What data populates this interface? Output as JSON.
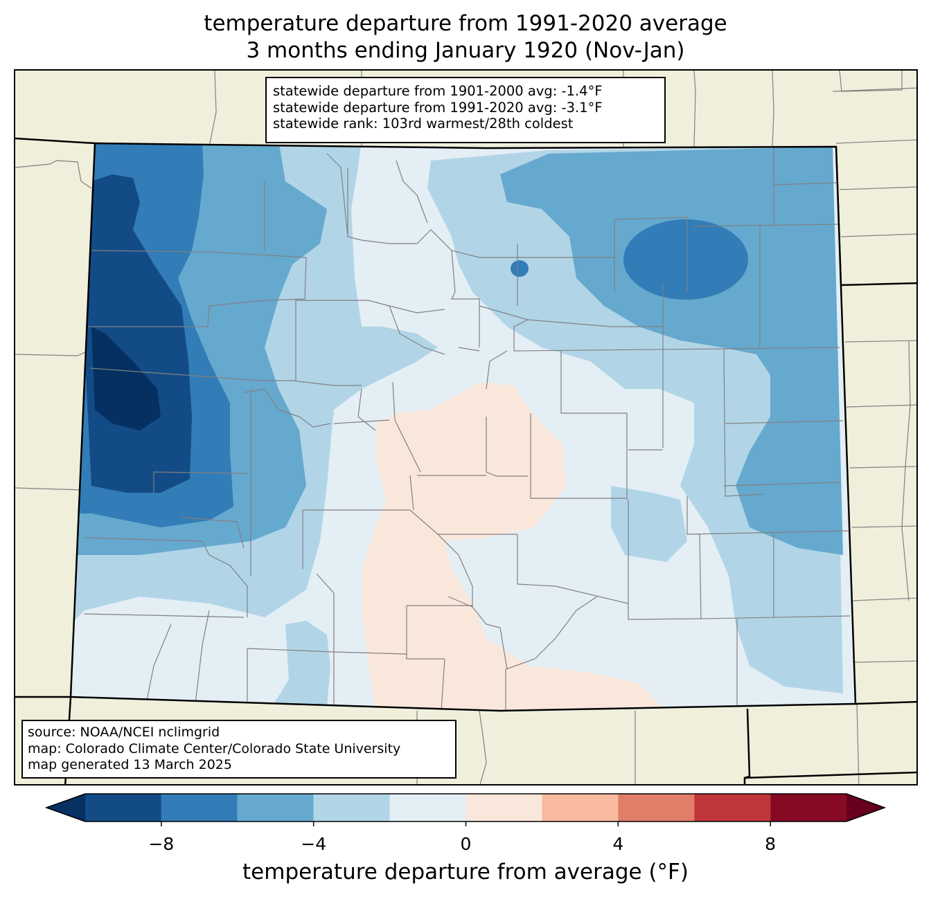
{
  "title": {
    "line1": "temperature departure from 1991-2020 average",
    "line2": "3 months ending January 1920 (Nov-Jan)"
  },
  "stats_box": {
    "line1": "statewide departure from 1901-2000 avg: -1.4°F",
    "line2": "statewide departure from 1991-2020 avg: -3.1°F",
    "line3": "statewide rank: 103rd warmest/28th coldest"
  },
  "source_box": {
    "line1": "source: NOAA/NCEI nclimgrid",
    "line2": "map: Colorado Climate Center/Colorado State University",
    "line3": "map generated 13 March 2025"
  },
  "colorbar": {
    "label": "temperature departure from average (°F)",
    "ticks": [
      {
        "value": -8,
        "label": "−8"
      },
      {
        "value": -4,
        "label": "−4"
      },
      {
        "value": 0,
        "label": "0"
      },
      {
        "value": 4,
        "label": "4"
      },
      {
        "value": 8,
        "label": "8"
      }
    ],
    "bins": [
      {
        "from": -12,
        "to": -10,
        "color": "#053061"
      },
      {
        "from": -10,
        "to": -8,
        "color": "#134b87"
      },
      {
        "from": -8,
        "to": -6,
        "color": "#327cb7"
      },
      {
        "from": -6,
        "to": -4,
        "color": "#66a9cf"
      },
      {
        "from": -4,
        "to": -2,
        "color": "#b1d5e7"
      },
      {
        "from": -2,
        "to": 0,
        "color": "#e4eef5"
      },
      {
        "from": 0,
        "to": 2,
        "color": "#fae7dc"
      },
      {
        "from": 2,
        "to": 4,
        "color": "#f8bb9f"
      },
      {
        "from": 4,
        "to": 6,
        "color": "#e17e67"
      },
      {
        "from": 6,
        "to": 8,
        "color": "#c13639"
      },
      {
        "from": 8,
        "to": 10,
        "color": "#870a24"
      },
      {
        "from": 10,
        "to": 12,
        "color": "#67001f"
      }
    ],
    "range": [
      -10,
      10
    ]
  },
  "map": {
    "land_color": "#efefdc",
    "state_outline_color": "#000000",
    "county_line_color": "#808080"
  }
}
